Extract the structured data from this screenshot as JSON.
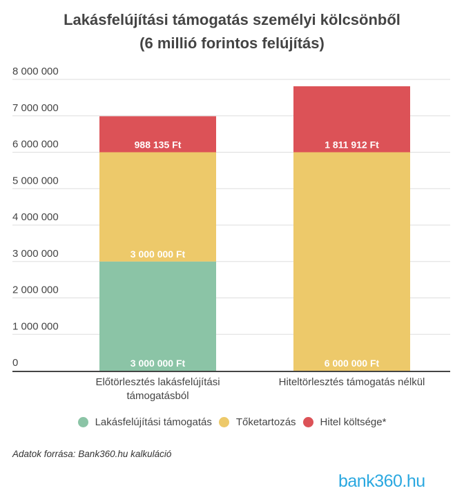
{
  "chart_data": {
    "type": "bar",
    "stacked": true,
    "title": "Lakásfelújítási támogatás személyi kölcsönből",
    "subtitle": "(6 millió forintos felújítás)",
    "categories": [
      [
        "Előtörlesztés lakásfelújítási",
        "támogatásból"
      ],
      [
        "Hiteltörlesztés támogatás nélkül"
      ]
    ],
    "series": [
      {
        "name": "Lakásfelújítási támogatás",
        "color": "#8bc4a6",
        "values": [
          3000000,
          0
        ],
        "labels": [
          "3 000 000 Ft",
          ""
        ]
      },
      {
        "name": "Tőketartozás",
        "color": "#edc96a",
        "values": [
          3000000,
          6000000
        ],
        "labels": [
          "3 000 000 Ft",
          "6 000 000 Ft"
        ]
      },
      {
        "name": "Hitel költsége*",
        "color": "#dc5257",
        "values": [
          988135,
          1811912
        ],
        "labels": [
          "988 135 Ft",
          "1 811 912 Ft"
        ]
      }
    ],
    "ylim": [
      0,
      8000000
    ],
    "yticks": [
      0,
      1000000,
      2000000,
      3000000,
      4000000,
      5000000,
      6000000,
      7000000,
      8000000
    ],
    "ytick_labels": [
      "0",
      "1 000 000",
      "2 000 000",
      "3 000 000",
      "4 000 000",
      "5 000 000",
      "6 000 000",
      "7 000 000",
      "8 000 000"
    ],
    "grid": true,
    "legend": "bottom-center"
  },
  "source": "Adatok forrása: Bank360.hu kalkuláció",
  "logo": "bank360.hu"
}
